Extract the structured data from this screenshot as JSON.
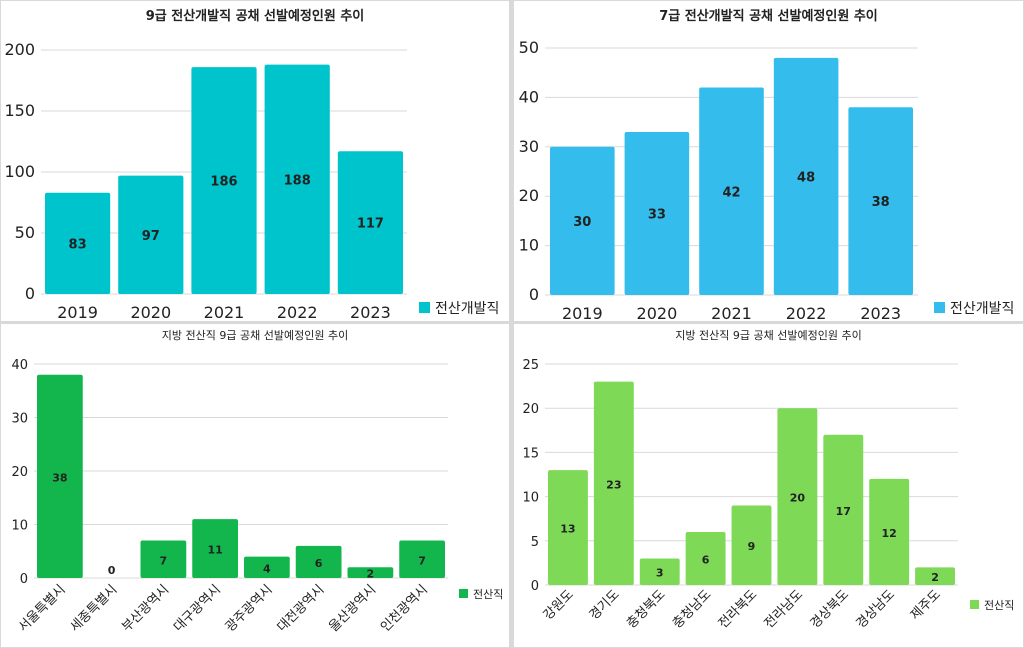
{
  "chart_data": [
    {
      "type": "bar",
      "title": "9급 전산개발직 공채 선발예정인원 추이",
      "categories": [
        "2019",
        "2020",
        "2021",
        "2022",
        "2023"
      ],
      "series": [
        {
          "name": "전산개발직",
          "values": [
            83,
            97,
            186,
            188,
            117
          ]
        }
      ],
      "ylim": [
        0,
        200
      ],
      "yticks": [
        0,
        50,
        100,
        150,
        200
      ],
      "color": "#00c4cc",
      "legend": "right",
      "grid": true
    },
    {
      "type": "bar",
      "title": "7급 전산개발직 공채 선발예정인원 추이",
      "categories": [
        "2019",
        "2020",
        "2021",
        "2022",
        "2023"
      ],
      "series": [
        {
          "name": "전산개발직",
          "values": [
            30,
            33,
            42,
            48,
            38
          ]
        }
      ],
      "ylim": [
        0,
        50
      ],
      "yticks": [
        0,
        10,
        20,
        30,
        40,
        50
      ],
      "color": "#34bdec",
      "legend": "right",
      "grid": true
    },
    {
      "type": "bar",
      "title": "지방 전산직 9급 공채 선발예정인원 추이",
      "categories": [
        "서울특별시",
        "세종특별시",
        "부산광역시",
        "대구광역시",
        "광주광역시",
        "대전광역시",
        "울산광역시",
        "인천광역시"
      ],
      "series": [
        {
          "name": "전산직",
          "values": [
            38,
            0,
            7,
            11,
            4,
            6,
            2,
            7
          ]
        }
      ],
      "ylim": [
        0,
        40
      ],
      "yticks": [
        0,
        10,
        20,
        30,
        40
      ],
      "color": "#13b54d",
      "legend": "right",
      "grid": true
    },
    {
      "type": "bar",
      "title": "지방 전산직 9급 공채 선발예정인원 추이",
      "categories": [
        "강원도",
        "경기도",
        "충청북도",
        "충청남도",
        "전라북도",
        "전라남도",
        "경상북도",
        "경상남도",
        "제주도"
      ],
      "series": [
        {
          "name": "전산직",
          "values": [
            13,
            23,
            3,
            6,
            9,
            20,
            17,
            12,
            2
          ]
        }
      ],
      "ylim": [
        0,
        25
      ],
      "yticks": [
        0,
        5,
        10,
        15,
        20,
        25
      ],
      "color": "#7ed957",
      "legend": "right",
      "grid": true
    }
  ]
}
